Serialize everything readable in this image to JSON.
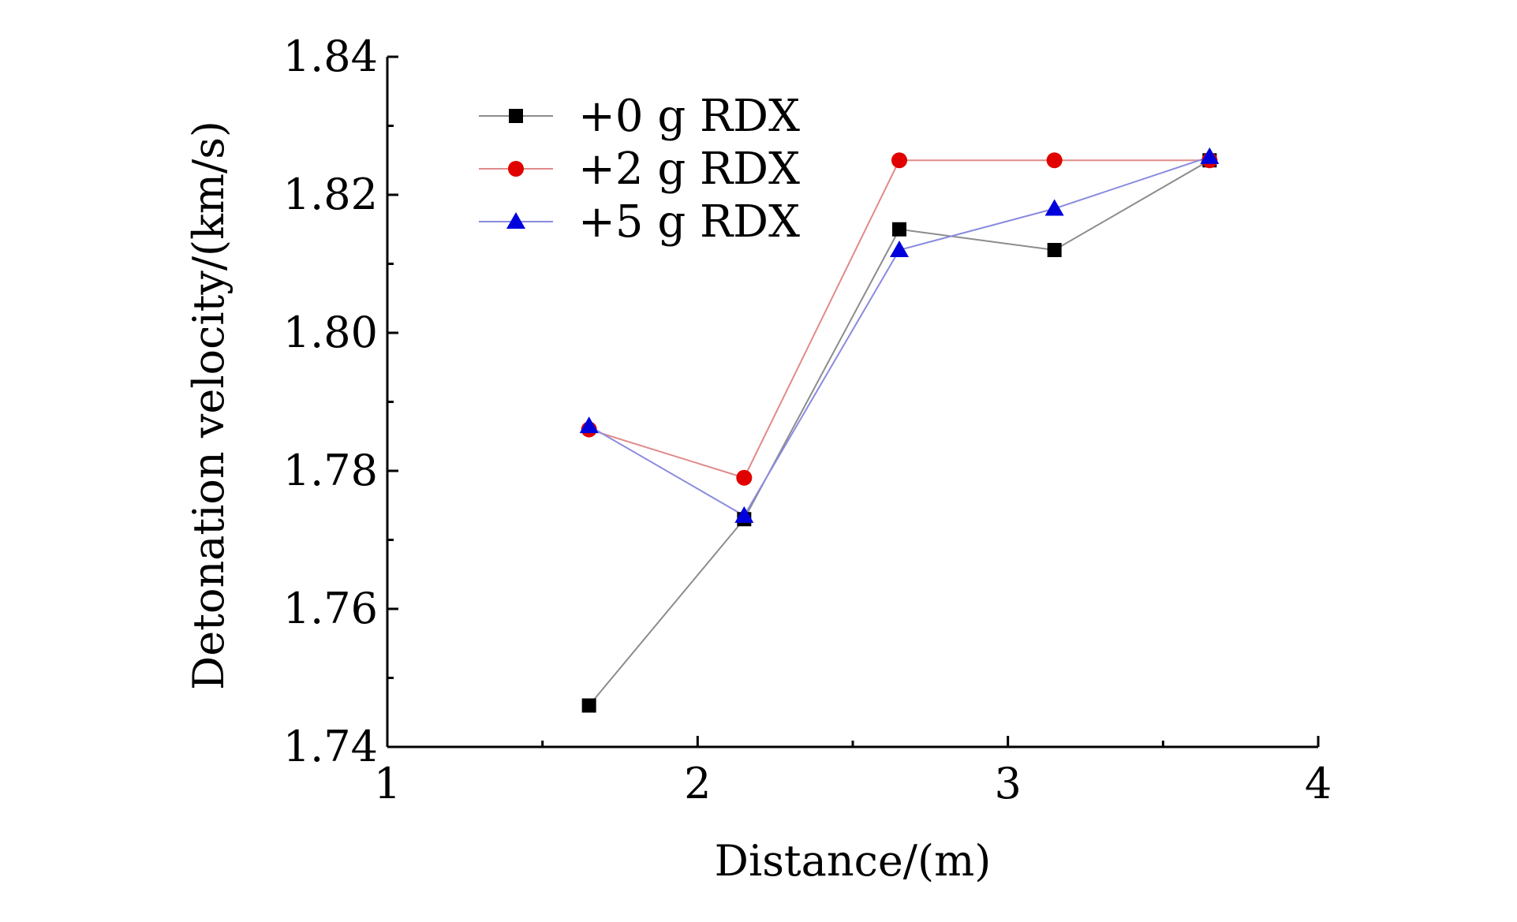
{
  "chart_data": {
    "type": "line",
    "title": "",
    "xlabel": "Distance/(m)",
    "ylabel": "Detonation velocity/(km/s)",
    "xlim": [
      1,
      4
    ],
    "ylim": [
      1.74,
      1.84
    ],
    "x_ticks": [
      1,
      2,
      3,
      4
    ],
    "x_tick_labels": [
      "1",
      "2",
      "3",
      "4"
    ],
    "y_ticks": [
      1.74,
      1.76,
      1.78,
      1.8,
      1.82,
      1.84
    ],
    "y_tick_labels": [
      "1.74",
      "1.76",
      "1.78",
      "1.80",
      "1.82",
      "1.84"
    ],
    "x": [
      1.65,
      2.15,
      2.65,
      3.15,
      3.65
    ],
    "grid": false,
    "legend_position": "top-left",
    "series": [
      {
        "name": "+0 g RDX",
        "marker": "square",
        "marker_color": "#000000",
        "line_color": "#8c8c8c",
        "values": [
          1.746,
          1.773,
          1.815,
          1.812,
          1.825
        ]
      },
      {
        "name": "+2 g RDX",
        "marker": "circle",
        "marker_color": "#e00000",
        "line_color": "#e08a8a",
        "values": [
          1.786,
          1.779,
          1.825,
          1.825,
          1.825
        ]
      },
      {
        "name": "+5 g RDX",
        "marker": "triangle",
        "marker_color": "#0000dd",
        "line_color": "#8a8ae0",
        "values": [
          1.7865,
          1.7735,
          1.812,
          1.818,
          1.8255
        ]
      }
    ]
  }
}
